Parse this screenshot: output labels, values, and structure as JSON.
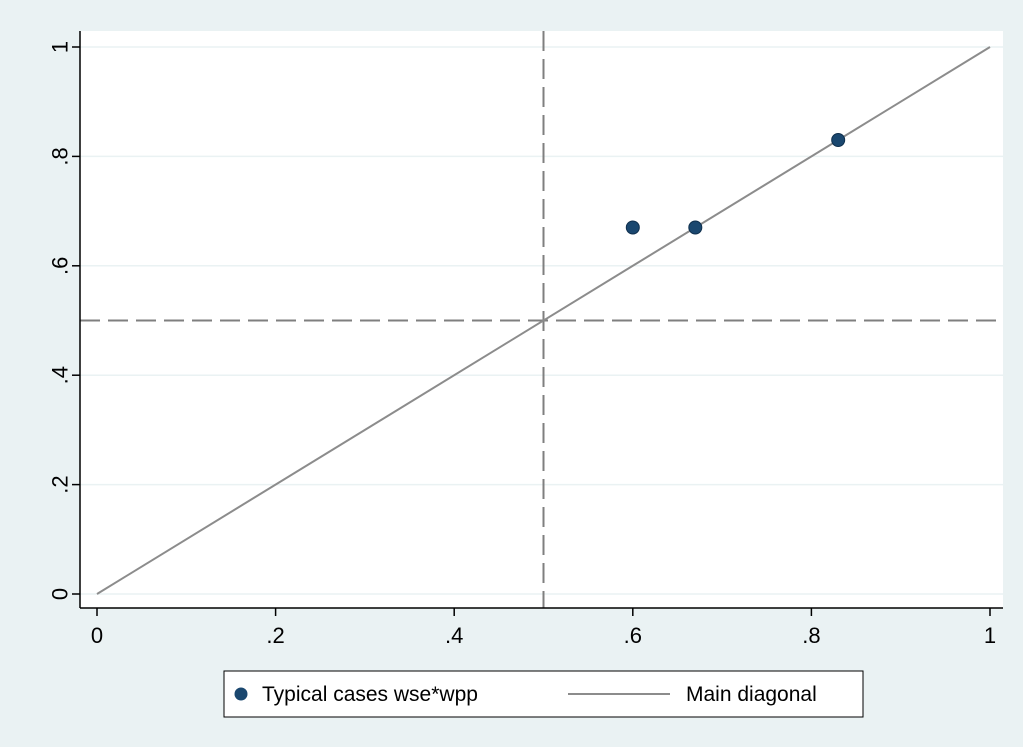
{
  "chart_data": {
    "type": "scatter",
    "title": "",
    "xlabel": "",
    "ylabel": "",
    "xlim": [
      0,
      1
    ],
    "ylim": [
      0,
      1
    ],
    "x_ticks": [
      {
        "value": 0,
        "label": "0"
      },
      {
        "value": 0.2,
        "label": ".2"
      },
      {
        "value": 0.4,
        "label": ".4"
      },
      {
        "value": 0.6,
        "label": ".6"
      },
      {
        "value": 0.8,
        "label": ".8"
      },
      {
        "value": 1,
        "label": "1"
      }
    ],
    "y_ticks": [
      {
        "value": 0,
        "label": "0"
      },
      {
        "value": 0.2,
        "label": ".2"
      },
      {
        "value": 0.4,
        "label": ".4"
      },
      {
        "value": 0.6,
        "label": ".6"
      },
      {
        "value": 0.8,
        "label": ".8"
      },
      {
        "value": 1,
        "label": "1"
      }
    ],
    "grid": "horizontal",
    "series": [
      {
        "name": "Typical cases wse*wpp",
        "kind": "scatter",
        "color": "#1a476f",
        "points": [
          {
            "x": 0.6,
            "y": 0.67
          },
          {
            "x": 0.67,
            "y": 0.67
          },
          {
            "x": 0.83,
            "y": 0.83
          }
        ]
      },
      {
        "name": "Main diagonal",
        "kind": "line",
        "color": "#8c8c8c",
        "points": [
          {
            "x": 0,
            "y": 0
          },
          {
            "x": 1,
            "y": 1
          }
        ]
      }
    ],
    "reference_lines": [
      {
        "axis": "x",
        "value": 0.5,
        "style": "dashed"
      },
      {
        "axis": "y",
        "value": 0.5,
        "style": "dashed"
      }
    ],
    "legend": {
      "position": "bottom",
      "columns": 2
    }
  }
}
